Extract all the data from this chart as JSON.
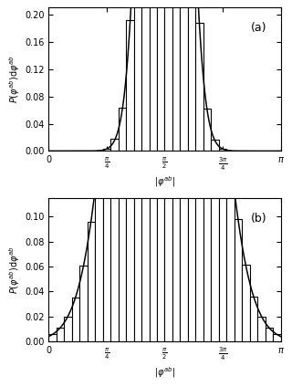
{
  "panel_a": {
    "label": "(a)",
    "ylim": [
      0,
      0.21
    ],
    "yticks": [
      0.0,
      0.04,
      0.08,
      0.12,
      0.16,
      0.2
    ],
    "mu": 1.5708,
    "sigma": 0.22,
    "n_bins": 30,
    "curve_color": "#000000",
    "hist_facecolor": "white",
    "hist_edgecolor": "#000000",
    "hist_lw": 0.8
  },
  "panel_b": {
    "label": "(b)",
    "ylim": [
      0,
      0.115
    ],
    "yticks": [
      0.0,
      0.02,
      0.04,
      0.06,
      0.08,
      0.1
    ],
    "mu": 1.5708,
    "sigma": 0.48,
    "n_bins": 30,
    "curve_color": "#000000",
    "hist_facecolor": "white",
    "hist_edgecolor": "#000000",
    "hist_lw": 0.8
  },
  "xticks": [
    0,
    0.7854,
    1.5708,
    2.3562,
    3.1416
  ],
  "xtick_labels": [
    "0",
    "$\\frac{\\pi}{4}$",
    "$\\frac{\\pi}{2}$",
    "$\\frac{3\\pi}{4}$",
    "$\\pi$"
  ],
  "xlim": [
    0,
    3.1416
  ],
  "background": "#ffffff",
  "tick_fontsize": 7,
  "label_fontsize": 7,
  "annot_fontsize": 9
}
